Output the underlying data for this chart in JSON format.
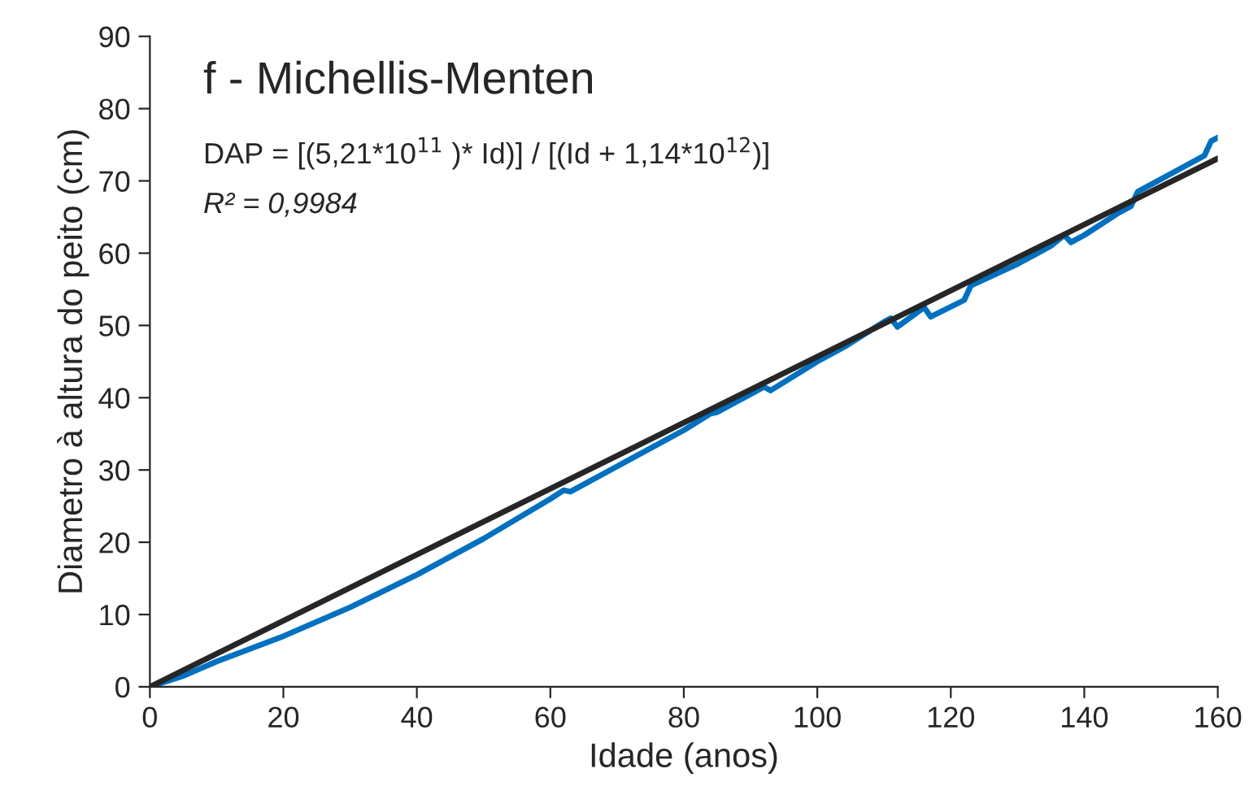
{
  "chart_data": {
    "type": "line",
    "xlabel": "Idade (anos)",
    "ylabel": "Diametro à altura do peito (cm)",
    "annotations": [
      "f - Michellis-Menten",
      "DAP = [(5,21*10$^{11}$ )* Id)] / [(Id + 1,14*10$^{12}$)]",
      "R² = 0,9984"
    ],
    "series": [
      {
        "color": "#0070c0",
        "x": [
          0,
          5,
          10,
          20,
          30,
          40,
          50,
          60,
          62,
          63,
          70,
          80,
          84,
          85,
          88,
          90,
          92,
          93,
          100,
          104,
          110,
          111,
          112,
          116,
          117,
          122,
          123,
          130,
          135,
          137,
          138,
          140,
          145,
          147,
          148,
          155,
          158,
          159,
          160
        ],
        "values": [
          0,
          1.5,
          3.5,
          7,
          11,
          15.5,
          20.5,
          26,
          27.2,
          27,
          30.5,
          35.5,
          37.8,
          38,
          39.5,
          40.5,
          41.5,
          41,
          45,
          47,
          50.5,
          51,
          49.8,
          52.5,
          51.2,
          53.5,
          55.5,
          58.5,
          61,
          62.5,
          61.5,
          62.5,
          65.5,
          66.5,
          68.5,
          72,
          73.5,
          75.5,
          76
        ]
      },
      {
        "color": "#262626",
        "x": [
          0,
          160
        ],
        "values": [
          0,
          73.1
        ]
      }
    ],
    "xlim": [
      0,
      160
    ],
    "ylim": [
      0,
      90
    ],
    "xticks": [
      0,
      20,
      40,
      60,
      80,
      100,
      120,
      140,
      160
    ],
    "yticks": [
      0,
      10,
      20,
      30,
      40,
      50,
      60,
      70,
      80,
      90
    ],
    "grid": false
  }
}
